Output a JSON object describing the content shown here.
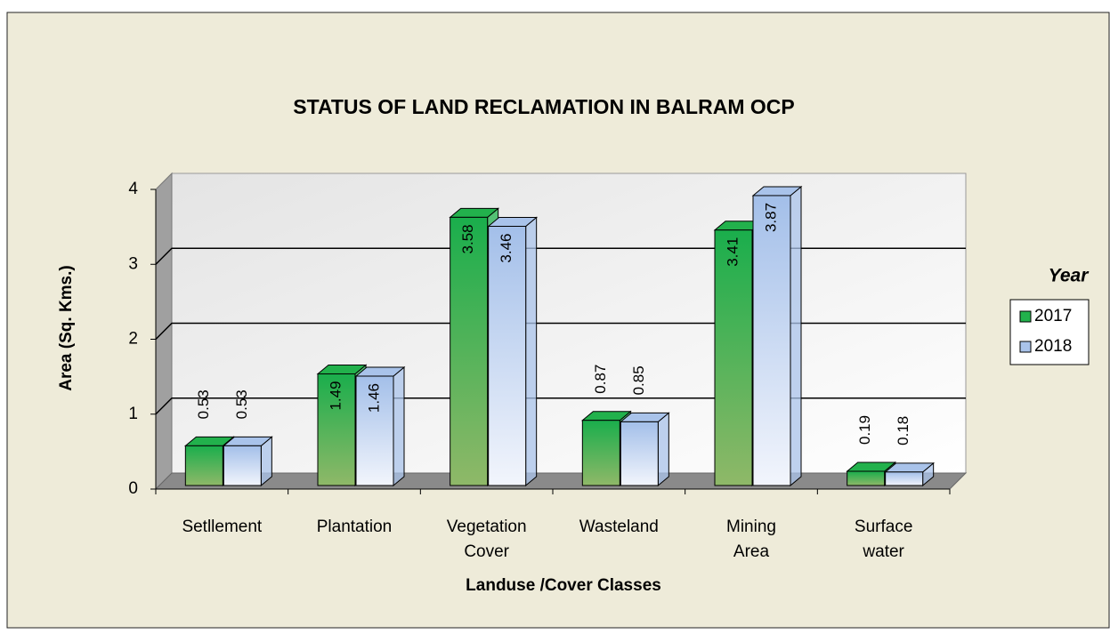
{
  "chart_data": {
    "type": "bar3d",
    "title": "STATUS OF LAND RECLAMATION   IN BALRAM OCP",
    "x_label": "Landuse /Cover Classes",
    "y_label": "Area (Sq. Kms.)",
    "legend_title": "Year",
    "legend": "right",
    "grid": true,
    "categories": [
      "Setllement",
      "Plantation",
      "Vegetation Cover",
      "Wasteland",
      "Mining Area",
      "Surface water"
    ],
    "series": [
      {
        "name": "2017",
        "color": "#22b14c",
        "values": [
          0.53,
          1.49,
          3.58,
          0.87,
          3.41,
          0.19
        ]
      },
      {
        "name": "2018",
        "color": "#a9c3ea",
        "values": [
          0.53,
          1.46,
          3.46,
          0.85,
          3.87,
          0.18
        ]
      }
    ],
    "ylim": [
      0,
      4
    ],
    "yticks": [
      0,
      1,
      2,
      3,
      4
    ]
  }
}
